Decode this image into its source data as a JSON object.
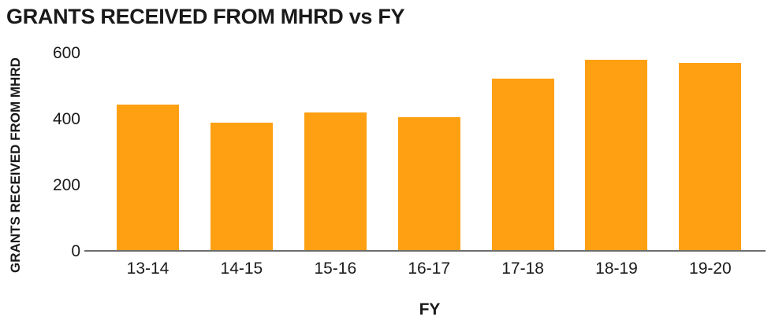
{
  "chart_data": {
    "type": "bar",
    "title": "GRANTS RECEIVED FROM MHRD vs FY",
    "xlabel": "FY",
    "ylabel": "GRANTS RECEIVED FROM MHRD",
    "categories": [
      "13-14",
      "14-15",
      "15-16",
      "16-17",
      "17-18",
      "18-19",
      "19-20"
    ],
    "values": [
      445,
      392,
      421,
      408,
      525,
      583,
      573
    ],
    "yticks": [
      0,
      200,
      400,
      600
    ],
    "ylim": [
      0,
      620
    ],
    "grid": false,
    "legend": "none",
    "colors": {
      "bar": "#FFA013",
      "axis": "#6E6E6E",
      "text": "#1A1A1A",
      "background": "#FFFFFF"
    }
  }
}
